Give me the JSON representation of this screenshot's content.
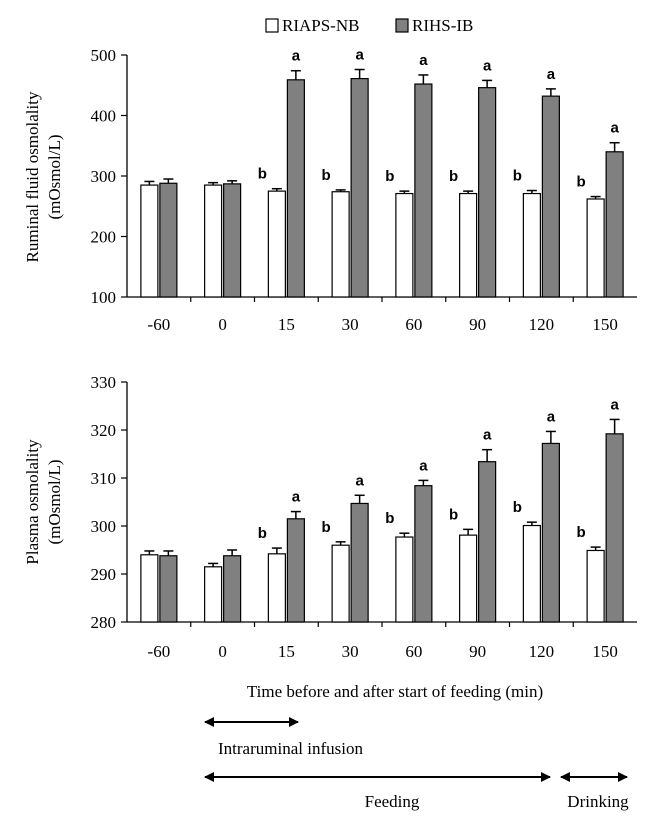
{
  "legend": {
    "series_a": "RIAPS-NB",
    "series_b": "RIHS-IB"
  },
  "colors": {
    "series_a_fill": "#ffffff",
    "series_b_fill": "#808080",
    "stroke": "#000000"
  },
  "chart_data": [
    {
      "type": "bar",
      "ylabel_line1": "Ruminal fluid osmolality",
      "ylabel_line2": "(mOsmol/L)",
      "categories": [
        "-60",
        "0",
        "15",
        "30",
        "60",
        "90",
        "120",
        "150"
      ],
      "ylim": [
        100,
        500
      ],
      "yticks": [
        100,
        200,
        300,
        400,
        500
      ],
      "series": [
        {
          "name": "RIAPS-NB",
          "values": [
            285,
            285,
            275,
            274,
            271,
            271,
            271,
            262
          ],
          "errors": [
            6,
            4,
            4,
            3,
            4,
            4,
            5,
            4
          ]
        },
        {
          "name": "RIHS-IB",
          "values": [
            288,
            287,
            459,
            461,
            452,
            446,
            432,
            340
          ],
          "errors": [
            7,
            5,
            15,
            15,
            15,
            12,
            12,
            15
          ]
        }
      ],
      "annotations": {
        "a": [
          "",
          "",
          "b",
          "b",
          "b",
          "b",
          "b",
          "b"
        ],
        "b": [
          "",
          "",
          "a",
          "a",
          "a",
          "a",
          "a",
          "a"
        ]
      }
    },
    {
      "type": "bar",
      "ylabel_line1": "Plasma osmolality",
      "ylabel_line2": "(mOsmol/L)",
      "categories": [
        "-60",
        "0",
        "15",
        "30",
        "60",
        "90",
        "120",
        "150"
      ],
      "ylim": [
        280,
        330
      ],
      "yticks": [
        280,
        290,
        300,
        310,
        320,
        330
      ],
      "series": [
        {
          "name": "RIAPS-NB",
          "values": [
            294,
            291.5,
            294.2,
            296,
            297.7,
            298.1,
            300.1,
            294.9
          ],
          "errors": [
            0.8,
            0.7,
            1.2,
            0.7,
            0.8,
            1.2,
            0.7,
            0.7
          ]
        },
        {
          "name": "RIHS-IB",
          "values": [
            293.8,
            293.8,
            301.5,
            304.7,
            308.4,
            313.4,
            317.2,
            319.2
          ],
          "errors": [
            1.0,
            1.2,
            1.5,
            1.7,
            1.1,
            2.5,
            2.5,
            3.0
          ]
        }
      ],
      "annotations": {
        "a": [
          "",
          "",
          "b",
          "b",
          "b",
          "b",
          "b",
          "b"
        ],
        "b": [
          "",
          "",
          "a",
          "a",
          "a",
          "a",
          "a",
          "a"
        ]
      }
    }
  ],
  "xlabel": "Time before and after start of feeding (min)",
  "periods": {
    "infusion": "Intraruminal infusion",
    "feeding": "Feeding",
    "drinking": "Drinking"
  }
}
